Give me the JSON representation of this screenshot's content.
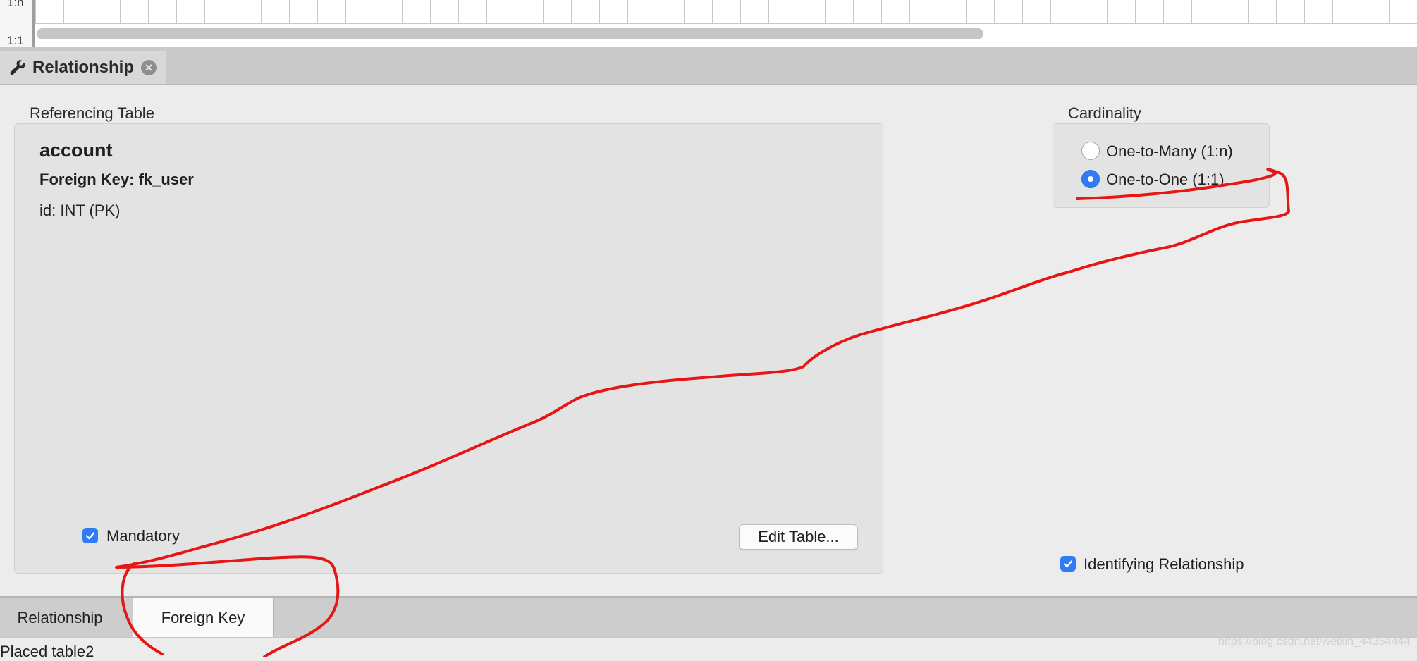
{
  "canvas": {
    "row_labels": [
      "1:n",
      "1:1"
    ]
  },
  "panel": {
    "tab_title": "Relationship"
  },
  "referencing": {
    "section_label": "Referencing Table",
    "table_name": "account",
    "foreign_key": "Foreign Key: fk_user",
    "columns": [
      "id: INT (PK)"
    ],
    "mandatory_label": "Mandatory",
    "mandatory_checked": true,
    "edit_button": "Edit Table..."
  },
  "cardinality": {
    "section_label": "Cardinality",
    "options": [
      "One-to-Many (1:n)",
      "One-to-One (1:1)"
    ],
    "selected": "One-to-One (1:1)"
  },
  "identifying": {
    "label": "Identifying Relationship",
    "checked": true
  },
  "bottom_tabs": {
    "items": [
      "Relationship",
      "Foreign Key"
    ],
    "active": "Foreign Key"
  },
  "status": {
    "text": "Placed table2"
  },
  "watermark": "https://blog.csdn.net/weixin_44364444",
  "colors": {
    "accent": "#2f7cf6",
    "annotation": "#e81515"
  },
  "icons": {
    "panel_tab": "wrench-icon",
    "panel_close": "close-icon"
  }
}
